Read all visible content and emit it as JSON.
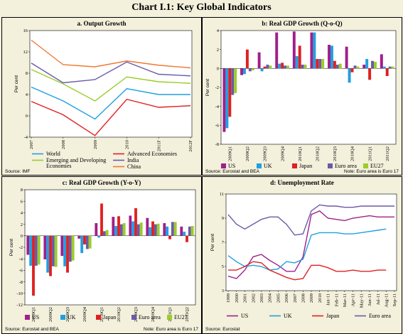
{
  "title": "Chart I.1: Key Global Indicators",
  "chart_data": [
    {
      "type": "line",
      "title": "a. Output Growth",
      "ylabel": "Per cent",
      "source": "Source: IMF",
      "categories": [
        "2007",
        "2008",
        "2009",
        "2010",
        "2011F",
        "2012F"
      ],
      "ylim": [
        -4,
        16
      ],
      "yticks": [
        -4,
        0,
        4,
        8,
        12,
        16
      ],
      "series": [
        {
          "name": "World",
          "color": "#20a0e0",
          "values": [
            5.4,
            2.8,
            -0.6,
            5.1,
            4.0,
            4.0
          ]
        },
        {
          "name": "Advanced Economies",
          "color": "#e02020",
          "values": [
            2.7,
            0.2,
            -3.7,
            3.1,
            1.6,
            1.9
          ]
        },
        {
          "name": "Emerging and Developing Economies",
          "color": "#9ccc2a",
          "values": [
            8.7,
            6.0,
            2.8,
            7.3,
            6.4,
            6.1
          ]
        },
        {
          "name": "India",
          "color": "#6a5aa8",
          "values": [
            9.9,
            6.2,
            6.8,
            10.1,
            7.8,
            7.5
          ]
        },
        {
          "name": "China",
          "color": "#f07830",
          "values": [
            14.2,
            9.6,
            9.2,
            10.3,
            9.5,
            9.0
          ]
        }
      ]
    },
    {
      "type": "bar",
      "title": "b: Real GDP Growth (Q-o-Q)",
      "ylabel": "Per cent",
      "source": "Source: Eurostat and BEA",
      "note": "Note: Euro area is Euro 17",
      "categories": [
        "2009Q1",
        "2009Q2",
        "2009Q3",
        "2009Q4",
        "2010Q1",
        "2010Q2",
        "2010Q3",
        "2010Q4",
        "2011Q1",
        "2011Q2"
      ],
      "ylim": [
        -8,
        4
      ],
      "yticks": [
        -8,
        -6,
        -4,
        -2,
        0,
        2,
        4
      ],
      "series": [
        {
          "name": "US",
          "color": "#a0208a",
          "values": [
            -6.7,
            -0.7,
            1.7,
            3.8,
            3.9,
            3.8,
            2.5,
            2.3,
            0.4,
            1.5
          ]
        },
        {
          "name": "UK",
          "color": "#20a0e0",
          "values": [
            -6.3,
            -0.6,
            -0.3,
            0.5,
            1.3,
            3.8,
            2.4,
            -1.5,
            1.0,
            0.2
          ]
        },
        {
          "name": "Japan",
          "color": "#e02020",
          "values": [
            -5.1,
            2.0,
            0.2,
            0.6,
            2.4,
            1.0,
            0.8,
            -0.4,
            -1.2,
            -0.8
          ]
        },
        {
          "name": "Euro area",
          "color": "#6a5aa8",
          "values": [
            -2.8,
            -0.3,
            0.4,
            0.3,
            0.4,
            1.0,
            0.4,
            0.3,
            0.8,
            0.2
          ]
        },
        {
          "name": "EU27",
          "color": "#9ccc2a",
          "values": [
            -2.6,
            -0.2,
            0.3,
            0.3,
            0.4,
            1.0,
            0.5,
            0.2,
            0.7,
            0.2
          ]
        }
      ]
    },
    {
      "type": "bar",
      "title": "c: Real GDP Growth (Y-o-Y)",
      "ylabel": "Per cent",
      "source": "Source: Eurostat and BEA",
      "note": "Note: Euro area is Euro 17",
      "categories": [
        "2009Q1",
        "2009Q2",
        "2009Q3",
        "2009Q4",
        "2010Q1",
        "2010Q2",
        "2010Q3",
        "2010Q4",
        "2011Q1",
        "2011Q2"
      ],
      "ylim": [
        -12,
        8
      ],
      "yticks": [
        -12,
        -10,
        -8,
        -6,
        -4,
        -2,
        0,
        2,
        4,
        6,
        8
      ],
      "series": [
        {
          "name": "US",
          "color": "#a0208a",
          "values": [
            -3.3,
            -4.1,
            -3.5,
            -0.5,
            2.2,
            3.3,
            3.5,
            3.1,
            2.2,
            1.6
          ]
        },
        {
          "name": "UK",
          "color": "#20a0e0",
          "values": [
            -5.2,
            -6.4,
            -5.3,
            -3.0,
            -0.3,
            1.7,
            2.5,
            1.5,
            1.6,
            0.7
          ]
        },
        {
          "name": "Japan",
          "color": "#e02020",
          "values": [
            -10.4,
            -7.0,
            -6.4,
            -1.5,
            5.6,
            3.4,
            4.8,
            2.5,
            -0.6,
            -1.1
          ]
        },
        {
          "name": "Euro area",
          "color": "#6a5aa8",
          "values": [
            -5.2,
            -5.3,
            -4.5,
            -2.3,
            0.8,
            2.0,
            2.0,
            2.0,
            2.4,
            1.6
          ]
        },
        {
          "name": "EU27",
          "color": "#9ccc2a",
          "values": [
            -5.0,
            -5.4,
            -4.3,
            -2.2,
            1.0,
            2.2,
            2.3,
            2.1,
            2.4,
            1.7
          ]
        }
      ]
    },
    {
      "type": "line",
      "title": "d: Unemployment Rate",
      "ylabel": "Per cent",
      "source": "Source: Eurostat",
      "categories": [
        "1999",
        "2000",
        "2001",
        "2002",
        "2003",
        "2004",
        "2005",
        "2006",
        "2007",
        "2008",
        "2009",
        "2010",
        "Jan-11",
        "Feb-11",
        "Mar-11",
        "Apr-11",
        "May-11",
        "Jun-11",
        "Jul-11",
        "Aug-11",
        "Sep-11"
      ],
      "ylim": [
        3,
        11
      ],
      "yticks": [
        3,
        5,
        7,
        9,
        11
      ],
      "series": [
        {
          "name": "US",
          "color": "#a0208a",
          "values": [
            4.2,
            4.0,
            4.7,
            5.8,
            6.0,
            5.5,
            5.1,
            4.6,
            4.6,
            5.8,
            9.3,
            9.6,
            9.0,
            8.9,
            8.8,
            9.0,
            9.1,
            9.2,
            9.1,
            9.1,
            9.1
          ]
        },
        {
          "name": "UK",
          "color": "#20a0e0",
          "values": [
            5.9,
            5.4,
            5.0,
            5.1,
            5.0,
            4.7,
            4.8,
            5.4,
            5.3,
            5.6,
            7.6,
            7.8,
            7.8,
            7.8,
            7.7,
            7.7,
            7.8,
            7.9,
            8.0,
            8.1,
            null
          ]
        },
        {
          "name": "Japan",
          "color": "#e02020",
          "values": [
            4.7,
            4.7,
            5.0,
            5.4,
            5.3,
            4.7,
            4.4,
            4.1,
            3.9,
            4.0,
            5.1,
            5.1,
            4.9,
            4.6,
            4.6,
            4.7,
            4.6,
            4.6,
            4.7,
            4.7,
            null
          ]
        },
        {
          "name": "Euro area",
          "color": "#6a5aa8",
          "values": [
            9.3,
            8.5,
            8.1,
            8.5,
            8.9,
            9.1,
            9.1,
            8.5,
            7.6,
            7.7,
            9.6,
            10.1,
            10.0,
            10.0,
            9.9,
            9.9,
            10.0,
            10.0,
            10.0,
            10.0,
            10.0
          ]
        }
      ]
    }
  ]
}
